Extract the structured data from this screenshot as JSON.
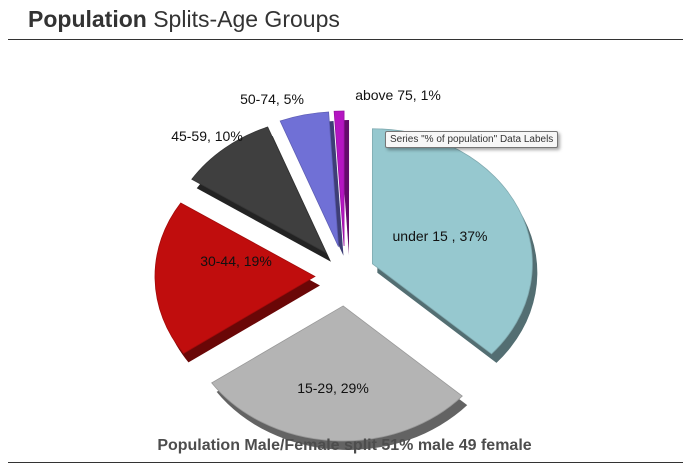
{
  "header": {
    "title_bold": "Population",
    "title_rest": "Splits-Age Groups"
  },
  "tooltip": "Series \"% of population\" Data Labels",
  "footer": {
    "subtitle": "Population Male/Female split 51% male 49 female"
  },
  "chart_data": {
    "type": "pie",
    "exploded": true,
    "style": "3d",
    "legend": "none",
    "series": [
      {
        "name": "% of population",
        "slices": [
          {
            "label": "under 15",
            "value": 37,
            "data_label": "under 15 , 37%",
            "color": "#96c8cf"
          },
          {
            "label": "15-29",
            "value": 29,
            "data_label": "15-29, 29%",
            "color": "#b4b4b4"
          },
          {
            "label": "30-44",
            "value": 19,
            "data_label": "30-44, 19%",
            "color": "#c00d0d"
          },
          {
            "label": "45-59",
            "value": 10,
            "data_label": "45-59, 10%",
            "color": "#3f3f3f"
          },
          {
            "label": "50-74",
            "value": 5,
            "data_label": "50-74, 5%",
            "color": "#7070d6"
          },
          {
            "label": "above 75",
            "value": 1,
            "data_label": "above 75, 1%",
            "color": "#b515c2"
          }
        ]
      }
    ]
  }
}
